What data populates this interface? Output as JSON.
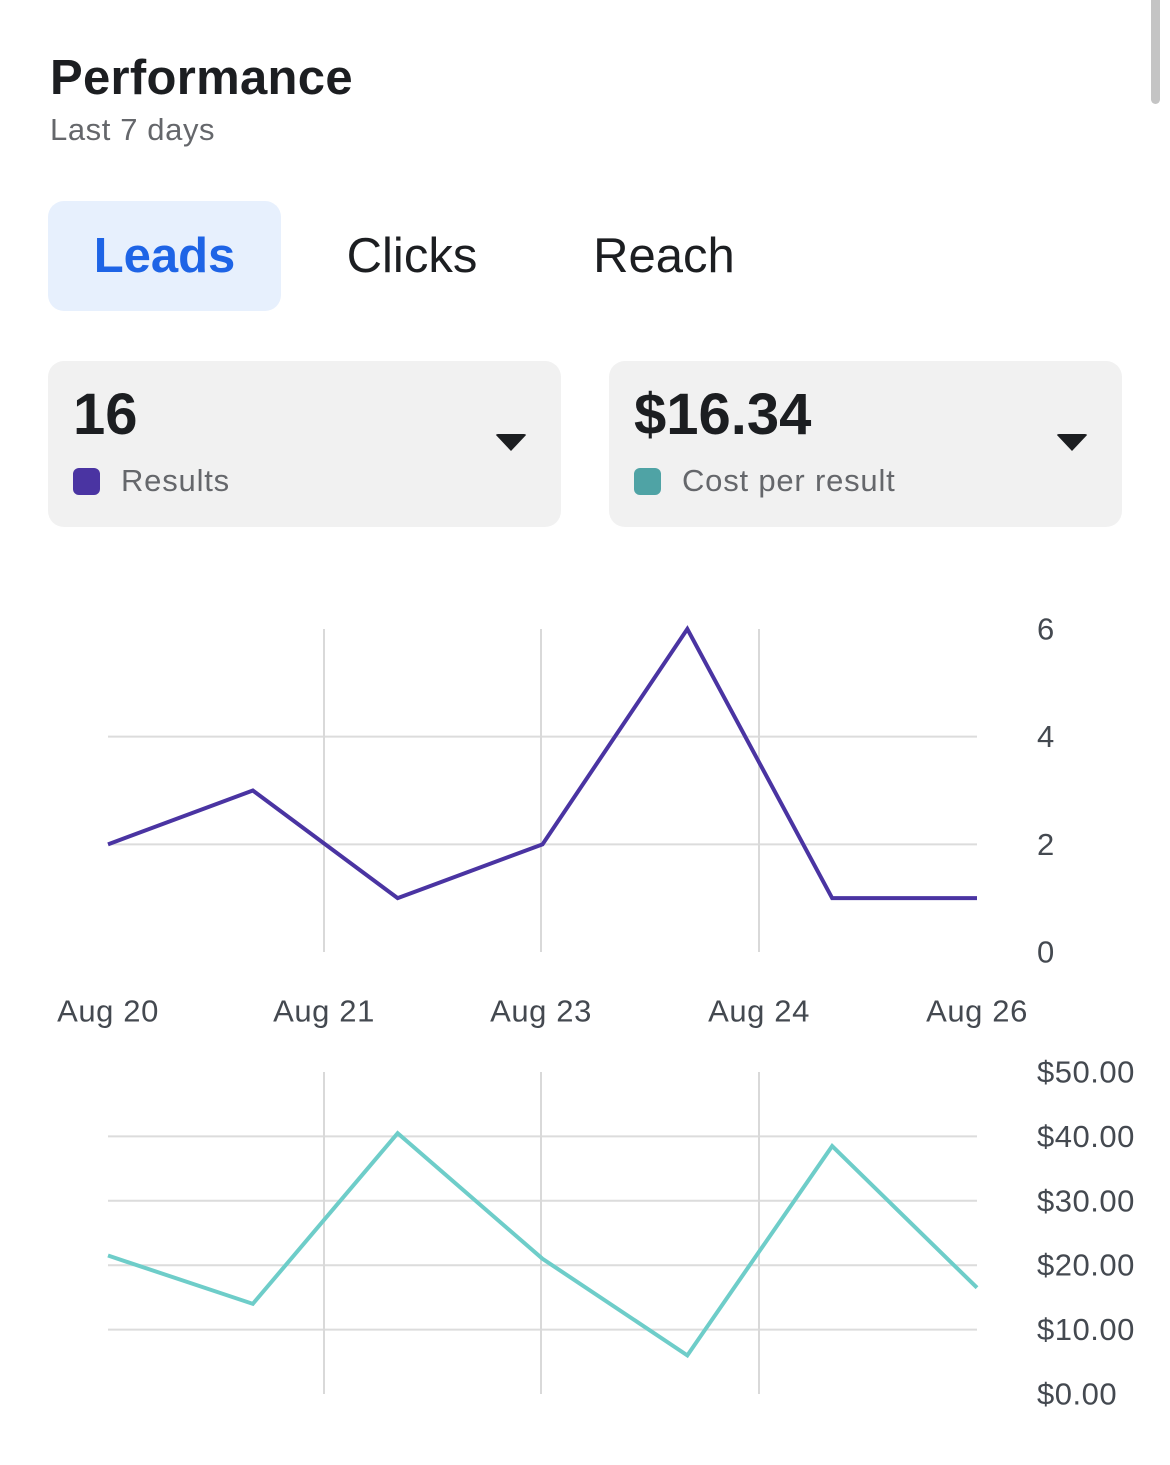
{
  "header": {
    "title": "Performance",
    "subtitle": "Last 7 days"
  },
  "tabs": [
    {
      "label": "Leads",
      "active": true
    },
    {
      "label": "Clicks",
      "active": false
    },
    {
      "label": "Reach",
      "active": false
    }
  ],
  "metrics": {
    "results": {
      "value": "16",
      "label": "Results",
      "color": "#4a34a2"
    },
    "cost": {
      "value": "$16.34",
      "label": "Cost per result",
      "color": "#4fa3a5"
    }
  },
  "chart_data": [
    {
      "type": "line",
      "title": "",
      "x": [
        0,
        1,
        2,
        3,
        4,
        5,
        6
      ],
      "x_tick_labels": [
        "Aug 20",
        "Aug 21",
        "Aug 23",
        "Aug 24",
        "Aug 26"
      ],
      "series": [
        {
          "name": "Results",
          "color": "#4a34a2",
          "values": [
            2,
            3,
            1,
            2,
            6,
            1,
            1
          ]
        }
      ],
      "ylim": [
        0,
        6
      ],
      "y_ticks": [
        0,
        2,
        4,
        6
      ],
      "y_tick_labels": [
        "0",
        "2",
        "4",
        "6"
      ],
      "y_axis_side": "right",
      "grid": true
    },
    {
      "type": "line",
      "title": "",
      "x": [
        0,
        1,
        2,
        3,
        4,
        5,
        6
      ],
      "series": [
        {
          "name": "Cost per result",
          "color": "#6ecdc9",
          "values": [
            21.5,
            14,
            40.5,
            21,
            6,
            38.5,
            16.5
          ]
        }
      ],
      "ylim": [
        0,
        50
      ],
      "y_ticks": [
        0,
        10,
        20,
        30,
        40,
        50
      ],
      "y_tick_labels": [
        "$0.00",
        "$10.00",
        "$20.00",
        "$30.00",
        "$40.00",
        "$50.00"
      ],
      "y_axis_side": "right",
      "grid": true
    }
  ]
}
